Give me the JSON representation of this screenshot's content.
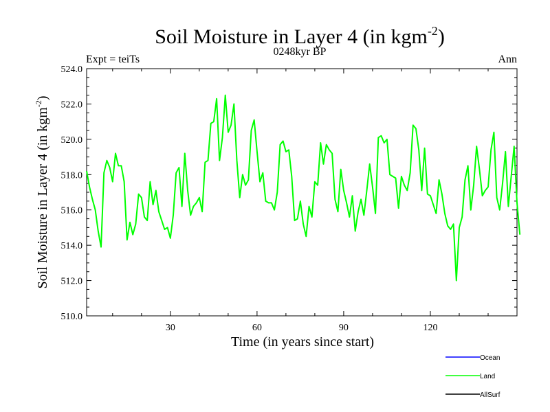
{
  "chart_data": {
    "type": "line",
    "title_main": "Soil Moisture in Layer 4 (in kgm",
    "title_sup": "-2",
    "title_close": ")",
    "subtitle": "0248kyr BP",
    "left_label": "Expt = teiTs",
    "right_label": "Ann",
    "xlabel": "Time (in years since start)",
    "ylabel_main": "Soil Moisture in Layer 4 (in kgm",
    "ylabel_sup": "-2",
    "ylabel_close": ")",
    "xlim": [
      1,
      150
    ],
    "ylim": [
      510.0,
      524.0
    ],
    "x_ticks": [
      30,
      60,
      90,
      120
    ],
    "x_tick_labels": [
      "30",
      "60",
      "90",
      "120"
    ],
    "y_ticks": [
      510,
      512,
      514,
      516,
      518,
      520,
      522,
      524
    ],
    "y_tick_labels": [
      "510.0",
      "512.0",
      "514.0",
      "516.0",
      "518.0",
      "520.0",
      "522.0",
      "524.0"
    ],
    "grid": false,
    "legend_position": "bottom-right, below plot",
    "series": [
      {
        "name": "Ocean",
        "color": "#0000ff",
        "values": []
      },
      {
        "name": "Land",
        "color": "#00ff00",
        "x_start": 1,
        "x_step": 1,
        "values": [
          518.2,
          517.3,
          516.6,
          516.0,
          514.8,
          513.9,
          518.1,
          518.8,
          518.4,
          517.6,
          519.2,
          518.5,
          518.5,
          517.6,
          514.3,
          515.3,
          514.6,
          515.2,
          516.9,
          516.7,
          515.6,
          515.4,
          517.6,
          516.3,
          517.1,
          515.9,
          515.4,
          514.9,
          515.0,
          514.4,
          515.7,
          518.1,
          518.4,
          516.2,
          519.2,
          517.1,
          515.7,
          516.2,
          516.4,
          516.7,
          515.9,
          518.7,
          518.8,
          520.9,
          521.0,
          522.3,
          518.8,
          520.1,
          522.5,
          520.4,
          520.8,
          522.0,
          518.8,
          516.7,
          518.0,
          517.4,
          517.7,
          520.5,
          521.1,
          519.3,
          517.6,
          518.1,
          516.5,
          516.4,
          516.4,
          516.0,
          517.0,
          519.7,
          519.9,
          519.3,
          519.4,
          517.9,
          515.4,
          515.5,
          516.5,
          515.2,
          514.5,
          516.2,
          515.6,
          517.6,
          517.4,
          519.8,
          518.6,
          519.7,
          519.4,
          519.2,
          516.6,
          515.9,
          518.3,
          517.1,
          516.4,
          515.6,
          516.8,
          514.8,
          515.9,
          516.6,
          515.7,
          517.1,
          518.6,
          517.3,
          515.8,
          520.1,
          520.2,
          519.8,
          520.0,
          518.0,
          517.9,
          517.8,
          516.1,
          517.9,
          517.4,
          517.1,
          518.1,
          520.8,
          520.6,
          519.4,
          517.1,
          519.5,
          516.9,
          516.8,
          516.3,
          515.8,
          517.7,
          516.9,
          515.8,
          515.1,
          514.9,
          515.2,
          512.0,
          515.0,
          515.6,
          517.7,
          518.5,
          516.0,
          517.4,
          519.6,
          518.3,
          516.8,
          517.1,
          517.3,
          519.4,
          520.4,
          516.7,
          516.0,
          517.5,
          519.3,
          516.2,
          517.9,
          519.6,
          516.4,
          514.6
        ]
      },
      {
        "name": "AllSurf",
        "color": "#000000",
        "values": []
      }
    ]
  }
}
